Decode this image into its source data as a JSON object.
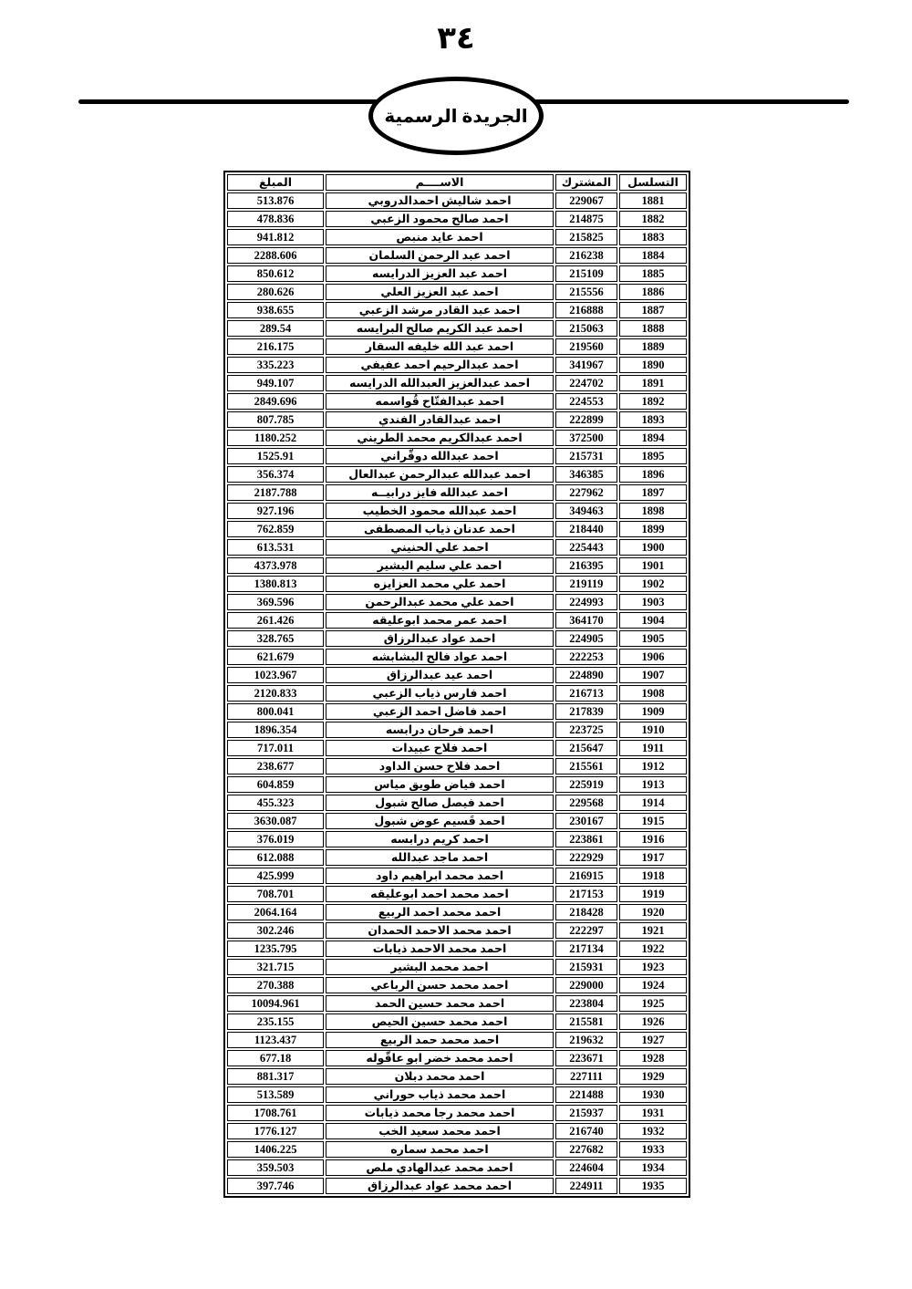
{
  "page": {
    "number_label": "٣٤"
  },
  "banner": {
    "title": "الجريدة الرسمية"
  },
  "table": {
    "headers": {
      "serial": "التسلسل",
      "subscriber": "المشترك",
      "name": "الاســــم",
      "amount": "المبلغ"
    },
    "rows": [
      [
        "1881",
        "229067",
        "احمد شاليش احمدالدروبي",
        "513.876"
      ],
      [
        "1882",
        "214875",
        "احمد صالح محمود الزعبي",
        "478.836"
      ],
      [
        "1883",
        "215825",
        "احمد عايد منبص",
        "941.812"
      ],
      [
        "1884",
        "216238",
        "احمد عبد الرحمن السلمان",
        "2288.606"
      ],
      [
        "1885",
        "215109",
        "احمد عبد العزيز  الدرايسه",
        "850.612"
      ],
      [
        "1886",
        "215556",
        "احمد عبد العزيز  العلي",
        "280.626"
      ],
      [
        "1887",
        "216888",
        "احمد عبد القادر مرشد الزعبي",
        "938.655"
      ],
      [
        "1888",
        "215063",
        "احمد عبد الكريم صالح البرايسه",
        "289.54"
      ],
      [
        "1889",
        "219560",
        "احمد عبد الله خليفه السقار",
        "216.175"
      ],
      [
        "1890",
        "341967",
        "احمد عبدالرحيم احمد عفيفي",
        "335.223"
      ],
      [
        "1891",
        "224702",
        "احمد عبدالعزيز العبدالله الدرايسه",
        "949.107"
      ],
      [
        "1892",
        "224553",
        "احمد عبدالفتّاح قُواسمه",
        "2849.696"
      ],
      [
        "1893",
        "222899",
        "احمد عبدالقادر الفندي",
        "807.785"
      ],
      [
        "1894",
        "372500",
        "احمد عبدالكريم محمد الطريني",
        "1180.252"
      ],
      [
        "1895",
        "215731",
        "احمد عبدالله دوقّراني",
        "1525.91"
      ],
      [
        "1896",
        "346385",
        "احمد عبدالله عبدالرحمن عبدالعال",
        "356.374"
      ],
      [
        "1897",
        "227962",
        "احمد عبدالله فايز درابيــه",
        "2187.788"
      ],
      [
        "1898",
        "349463",
        "احمد عبدالله محمود الخطيب",
        "927.196"
      ],
      [
        "1899",
        "218440",
        "احمد عدنان ذياب المصطفى",
        "762.859"
      ],
      [
        "1900",
        "225443",
        "احمد علي الحنيني",
        "613.531"
      ],
      [
        "1901",
        "216395",
        "احمد علي سليم البشير",
        "4373.978"
      ],
      [
        "1902",
        "219119",
        "احمد علي محمد العزايزه",
        "1380.813"
      ],
      [
        "1903",
        "224993",
        "احمد علي محمد عبدالرحمن",
        "369.596"
      ],
      [
        "1904",
        "364170",
        "احمد عمر محمد ابوعليقه",
        "261.426"
      ],
      [
        "1905",
        "224905",
        "احمد عواد عبدالرزاق",
        "328.765"
      ],
      [
        "1906",
        "222253",
        "احمد عواد فالح البشابشه",
        "621.679"
      ],
      [
        "1907",
        "224890",
        "احمد عيد عبدالرزاق",
        "1023.967"
      ],
      [
        "1908",
        "216713",
        "احمد فارس ذياب الزعبي",
        "2120.833"
      ],
      [
        "1909",
        "217839",
        "احمد فاضل احمد الزعبي",
        "800.041"
      ],
      [
        "1910",
        "223725",
        "احمد فرحان درابسه",
        "1896.354"
      ],
      [
        "1911",
        "215647",
        "احمد فلاح  عبيدات",
        "717.011"
      ],
      [
        "1912",
        "215561",
        "احمد فلاح حسن  الداود",
        "238.677"
      ],
      [
        "1913",
        "225919",
        "احمد فياض طويق مياس",
        "604.859"
      ],
      [
        "1914",
        "229568",
        "احمد فيصل  صالح  شبول",
        "455.323"
      ],
      [
        "1915",
        "230167",
        "احمد قَسيم  عوض  شبول",
        "3630.087"
      ],
      [
        "1916",
        "223861",
        "احمد كريم درابسه",
        "376.019"
      ],
      [
        "1917",
        "222929",
        "احمد ماجد عبدالله",
        "612.088"
      ],
      [
        "1918",
        "216915",
        "احمد محمد ابراهيم داود",
        "425.999"
      ],
      [
        "1919",
        "217153",
        "احمد محمد احمد ابوعليقه",
        "708.701"
      ],
      [
        "1920",
        "218428",
        "احمد محمد احمد الربيع",
        "2064.164"
      ],
      [
        "1921",
        "222297",
        "احمد محمد الاحمد الحمدان",
        "302.246"
      ],
      [
        "1922",
        "217134",
        "احمد محمد الاحمد ذيابات",
        "1235.795"
      ],
      [
        "1923",
        "215931",
        "احمد محمد البشير",
        "321.715"
      ],
      [
        "1924",
        "229000",
        "احمد محمد حسن الرباعي",
        "270.388"
      ],
      [
        "1925",
        "223804",
        "احمد محمد حسين الحمد",
        "10094.961"
      ],
      [
        "1926",
        "215581",
        "احمد محمد حسين الحيص",
        "235.155"
      ],
      [
        "1927",
        "219632",
        "احمد محمد حمد الربيع",
        "1123.437"
      ],
      [
        "1928",
        "223671",
        "احمد محمد خضر ابو عاقّوله",
        "677.18"
      ],
      [
        "1929",
        "227111",
        "احمد محمد دبلان",
        "881.317"
      ],
      [
        "1930",
        "221488",
        "احمد محمد ذياب  حوراني",
        "513.589"
      ],
      [
        "1931",
        "215937",
        "احمد محمد رجا محمد ذيابات",
        "1708.761"
      ],
      [
        "1932",
        "216740",
        "احمد محمد سعيد الخب",
        "1776.127"
      ],
      [
        "1933",
        "227682",
        "احمد محمد سماره",
        "1406.225"
      ],
      [
        "1934",
        "224604",
        "احمد محمد عبدالهادي ملص",
        "359.503"
      ],
      [
        "1935",
        "224911",
        "احمد محمد عواد عبدالرزاق",
        "397.746"
      ]
    ]
  }
}
